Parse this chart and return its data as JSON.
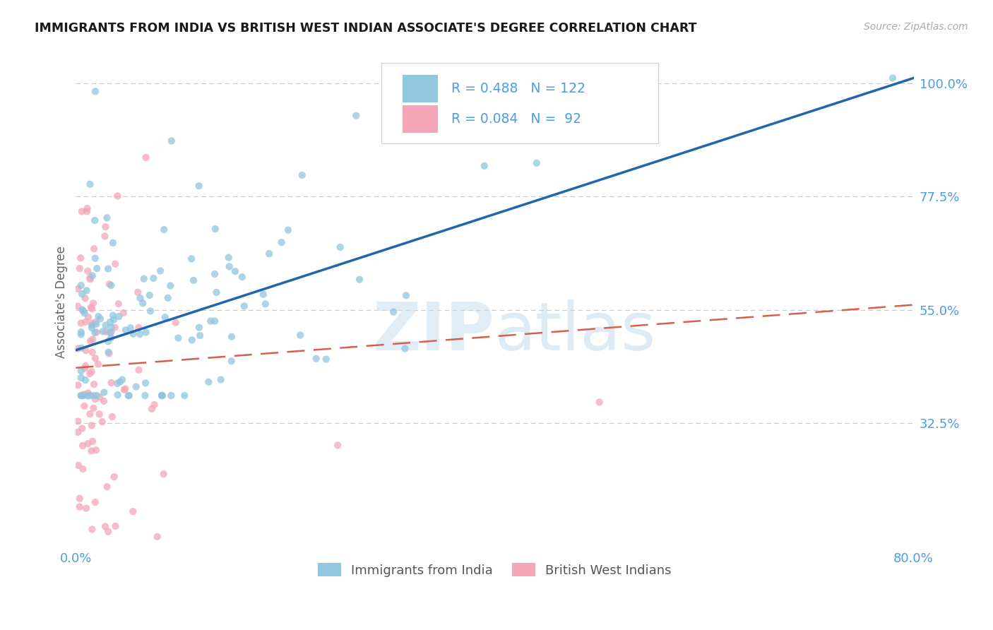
{
  "title": "IMMIGRANTS FROM INDIA VS BRITISH WEST INDIAN ASSOCIATE'S DEGREE CORRELATION CHART",
  "source": "Source: ZipAtlas.com",
  "ylabel": "Associate's Degree",
  "xlim": [
    0.0,
    0.8
  ],
  "ylim": [
    0.08,
    1.05
  ],
  "ytick_positions": [
    0.325,
    0.55,
    0.775,
    1.0
  ],
  "ytick_labels": [
    "32.5%",
    "55.0%",
    "77.5%",
    "100.0%"
  ],
  "grid_color": "#c8c8c8",
  "background_color": "#ffffff",
  "blue_color": "#92c5de",
  "blue_line_color": "#2166ac",
  "pink_color": "#f4a6b8",
  "pink_line_color": "#d6604d",
  "axis_label_color": "#4d9de0",
  "title_color": "#1a1a1a",
  "legend_R1": "0.488",
  "legend_N1": "122",
  "legend_R2": "0.084",
  "legend_N2": " 92",
  "series1_label": "Immigrants from India",
  "series2_label": "British West Indians",
  "watermark": "ZIPatlas",
  "blue_seed": 42,
  "pink_seed": 7,
  "blue_line_y0": 0.47,
  "blue_line_y1": 1.01,
  "pink_line_y0": 0.435,
  "pink_line_y1": 0.56
}
